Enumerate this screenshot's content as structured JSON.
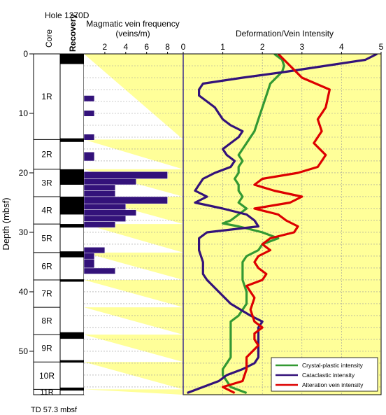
{
  "chart_data": {
    "type": "line",
    "title": "Hole 1270D",
    "footer": "TD 57.3 mbsf",
    "depth_axis": {
      "label": "Depth (mbsf)",
      "range": [
        0,
        57.3
      ],
      "ticks": [
        0,
        10,
        20,
        30,
        40,
        50
      ]
    },
    "core_column": {
      "header": "Core",
      "cores": [
        {
          "name": "1R",
          "top": 0,
          "bottom": 14.4
        },
        {
          "name": "2R",
          "top": 14.4,
          "bottom": 19.4
        },
        {
          "name": "3R",
          "top": 19.4,
          "bottom": 24.0
        },
        {
          "name": "4R",
          "top": 24.0,
          "bottom": 28.6
        },
        {
          "name": "5R",
          "top": 28.6,
          "bottom": 33.4
        },
        {
          "name": "6R",
          "top": 33.4,
          "bottom": 38.0
        },
        {
          "name": "7R",
          "top": 38.0,
          "bottom": 42.6
        },
        {
          "name": "8R",
          "top": 42.6,
          "bottom": 47.2
        },
        {
          "name": "9R",
          "top": 47.2,
          "bottom": 51.8
        },
        {
          "name": "10R",
          "top": 51.8,
          "bottom": 56.4
        },
        {
          "name": "11R",
          "top": 56.4,
          "bottom": 57.3
        }
      ]
    },
    "recovery_column": {
      "header": "Recovery",
      "recovered": [
        [
          0,
          1.7
        ],
        [
          14.2,
          14.8
        ],
        [
          19.4,
          22.0
        ],
        [
          24.0,
          27.0
        ],
        [
          28.6,
          29.2
        ],
        [
          33.2,
          34.2
        ],
        [
          37.9,
          38.3
        ],
        [
          46.8,
          47.9
        ],
        [
          51.5,
          51.9
        ],
        [
          56.1,
          56.6
        ]
      ]
    },
    "vein_frequency": {
      "title": "Magmatic vein frequency",
      "unit": "(veins/m)",
      "xlim": [
        0,
        9.5
      ],
      "xticks": [
        2,
        4,
        6,
        8
      ],
      "bars": [
        {
          "top": 7.0,
          "bottom": 8.0,
          "value": 1
        },
        {
          "top": 9.5,
          "bottom": 10.5,
          "value": 1
        },
        {
          "top": 13.5,
          "bottom": 14.5,
          "value": 1
        },
        {
          "top": 16.5,
          "bottom": 18.0,
          "value": 1
        },
        {
          "top": 19.8,
          "bottom": 21.0,
          "value": 8
        },
        {
          "top": 21.0,
          "bottom": 22.0,
          "value": 5
        },
        {
          "top": 22.0,
          "bottom": 23.0,
          "value": 3
        },
        {
          "top": 23.0,
          "bottom": 24.0,
          "value": 3
        },
        {
          "top": 24.0,
          "bottom": 25.2,
          "value": 8
        },
        {
          "top": 25.2,
          "bottom": 26.2,
          "value": 4
        },
        {
          "top": 26.2,
          "bottom": 27.2,
          "value": 5
        },
        {
          "top": 27.2,
          "bottom": 28.2,
          "value": 4
        },
        {
          "top": 28.2,
          "bottom": 29.2,
          "value": 3
        },
        {
          "top": 32.5,
          "bottom": 33.5,
          "value": 2
        },
        {
          "top": 33.5,
          "bottom": 34.5,
          "value": 1
        },
        {
          "top": 34.5,
          "bottom": 36.0,
          "value": 1
        },
        {
          "top": 36.0,
          "bottom": 37.0,
          "value": 3
        }
      ]
    },
    "intensity": {
      "title": "Deformation/Vein Intensity",
      "xlim": [
        0,
        5
      ],
      "xticks": [
        0,
        1,
        2,
        3,
        4,
        5
      ],
      "legend_position": "bottom-right",
      "series": [
        {
          "name": "Crystal-plastic intensity",
          "color": "#339933",
          "points": [
            [
              2.3,
              0
            ],
            [
              2.5,
              1
            ],
            [
              2.55,
              2
            ],
            [
              2.5,
              3
            ],
            [
              2.2,
              5
            ],
            [
              2.1,
              7
            ],
            [
              2.0,
              9
            ],
            [
              1.9,
              11
            ],
            [
              1.8,
              13
            ],
            [
              1.6,
              15
            ],
            [
              1.5,
              16
            ],
            [
              1.4,
              17
            ],
            [
              1.5,
              18
            ],
            [
              1.4,
              19
            ],
            [
              1.4,
              20
            ],
            [
              1.3,
              21
            ],
            [
              1.4,
              22
            ],
            [
              1.4,
              23
            ],
            [
              1.5,
              24
            ],
            [
              1.4,
              25
            ],
            [
              1.6,
              26
            ],
            [
              1.4,
              27
            ],
            [
              1.2,
              28
            ],
            [
              1.0,
              28.5
            ],
            [
              1.4,
              29
            ],
            [
              2.0,
              30
            ],
            [
              2.4,
              31
            ],
            [
              2.0,
              32
            ],
            [
              1.9,
              33
            ],
            [
              1.6,
              34
            ],
            [
              1.5,
              35
            ],
            [
              1.5,
              36
            ],
            [
              1.5,
              37
            ],
            [
              1.5,
              38
            ],
            [
              1.6,
              40
            ],
            [
              1.6,
              42
            ],
            [
              1.4,
              44
            ],
            [
              1.2,
              45
            ],
            [
              1.2,
              48
            ],
            [
              1.2,
              51
            ],
            [
              1.1,
              52
            ],
            [
              1.0,
              53
            ],
            [
              1.0,
              54
            ],
            [
              1.1,
              55
            ],
            [
              1.2,
              56
            ],
            [
              1.6,
              57
            ]
          ]
        },
        {
          "name": "Cataclastic intensity",
          "color": "#33127a",
          "points": [
            [
              4.9,
              0
            ],
            [
              4.6,
              1
            ],
            [
              3.6,
              2
            ],
            [
              2.6,
              3
            ],
            [
              1.5,
              4
            ],
            [
              0.5,
              5
            ],
            [
              0.4,
              6
            ],
            [
              0.4,
              7
            ],
            [
              0.6,
              8
            ],
            [
              0.8,
              9
            ],
            [
              0.9,
              10
            ],
            [
              1.0,
              11
            ],
            [
              1.2,
              12
            ],
            [
              1.5,
              13
            ],
            [
              1.4,
              14
            ],
            [
              1.2,
              15
            ],
            [
              1.0,
              16
            ],
            [
              1.1,
              17
            ],
            [
              1.3,
              18
            ],
            [
              1.2,
              19
            ],
            [
              0.8,
              20
            ],
            [
              0.5,
              21
            ],
            [
              0.4,
              22
            ],
            [
              0.3,
              23
            ],
            [
              0.6,
              24
            ],
            [
              0.3,
              25
            ],
            [
              1.0,
              26
            ],
            [
              1.6,
              27
            ],
            [
              1.8,
              28
            ],
            [
              1.9,
              29
            ],
            [
              0.6,
              30
            ],
            [
              0.4,
              31
            ],
            [
              0.4,
              33
            ],
            [
              0.5,
              35
            ],
            [
              0.5,
              37
            ],
            [
              0.6,
              38
            ],
            [
              0.9,
              40
            ],
            [
              1.2,
              42
            ],
            [
              1.7,
              44
            ],
            [
              2.0,
              45
            ],
            [
              1.9,
              46
            ],
            [
              1.9,
              48
            ],
            [
              1.9,
              50
            ],
            [
              1.9,
              51
            ],
            [
              1.8,
              52
            ],
            [
              1.5,
              53
            ],
            [
              1.1,
              54
            ],
            [
              0.9,
              55
            ],
            [
              0.5,
              56
            ],
            [
              0.1,
              57
            ]
          ]
        },
        {
          "name": "Alteration vein intensity",
          "color": "#dd0000",
          "points": [
            [
              2.4,
              0
            ],
            [
              2.7,
              2
            ],
            [
              3.0,
              4
            ],
            [
              3.7,
              6
            ],
            [
              3.6,
              9
            ],
            [
              3.4,
              11
            ],
            [
              3.5,
              13
            ],
            [
              3.3,
              15
            ],
            [
              3.6,
              17
            ],
            [
              3.4,
              19
            ],
            [
              2.9,
              20
            ],
            [
              2.0,
              21
            ],
            [
              1.8,
              22
            ],
            [
              2.3,
              23
            ],
            [
              3.0,
              24
            ],
            [
              2.7,
              25
            ],
            [
              1.8,
              26
            ],
            [
              2.4,
              27
            ],
            [
              2.6,
              28
            ],
            [
              2.9,
              29
            ],
            [
              2.8,
              30
            ],
            [
              2.2,
              31
            ],
            [
              2.0,
              32
            ],
            [
              2.2,
              33
            ],
            [
              1.9,
              34
            ],
            [
              1.8,
              35
            ],
            [
              1.9,
              36
            ],
            [
              2.1,
              37
            ],
            [
              2.0,
              38
            ],
            [
              1.6,
              39
            ],
            [
              1.8,
              41
            ],
            [
              1.7,
              43
            ],
            [
              1.8,
              45
            ],
            [
              2.0,
              46
            ],
            [
              1.8,
              47
            ],
            [
              1.8,
              48
            ],
            [
              1.9,
              49
            ],
            [
              1.6,
              51
            ],
            [
              1.6,
              53
            ],
            [
              1.5,
              55
            ],
            [
              1.0,
              56
            ],
            [
              1.3,
              57
            ]
          ]
        }
      ]
    }
  }
}
